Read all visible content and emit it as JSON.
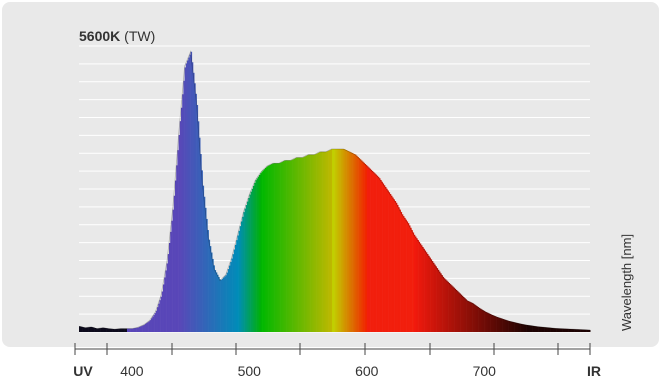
{
  "chart_data": {
    "type": "area",
    "title_bold": "5600K",
    "title_rest": " (TW)",
    "xlabel": "",
    "ylabel": "Wavelength [nm]",
    "x_ticks": [
      {
        "label": "UV",
        "bold": true
      },
      {
        "label": "400",
        "bold": false
      },
      {
        "label": "500",
        "bold": false
      },
      {
        "label": "600",
        "bold": false
      },
      {
        "label": "700",
        "bold": false
      },
      {
        "label": "IR",
        "bold": true
      }
    ],
    "x_tick_values": [
      400,
      500,
      600,
      700
    ],
    "xlim": [
      355,
      790
    ],
    "ylim": [
      0,
      1
    ],
    "grid": true,
    "legend": "none",
    "x": [
      355,
      360,
      365,
      370,
      375,
      380,
      385,
      390,
      395,
      400,
      405,
      410,
      415,
      420,
      425,
      430,
      435,
      440,
      445,
      450,
      455,
      460,
      465,
      470,
      475,
      480,
      485,
      490,
      495,
      500,
      505,
      510,
      515,
      520,
      525,
      530,
      535,
      540,
      545,
      550,
      555,
      560,
      565,
      570,
      575,
      580,
      585,
      590,
      595,
      600,
      605,
      610,
      615,
      620,
      625,
      630,
      635,
      640,
      645,
      650,
      655,
      660,
      665,
      670,
      675,
      680,
      685,
      690,
      695,
      700,
      705,
      710,
      715,
      720,
      725,
      730,
      735,
      740,
      745,
      750,
      755,
      760,
      765,
      770,
      775,
      780,
      785,
      790
    ],
    "y": [
      0.02,
      0.015,
      0.018,
      0.012,
      0.015,
      0.012,
      0.01,
      0.012,
      0.012,
      0.012,
      0.016,
      0.025,
      0.04,
      0.07,
      0.13,
      0.25,
      0.44,
      0.7,
      0.93,
      0.98,
      0.8,
      0.52,
      0.33,
      0.22,
      0.18,
      0.2,
      0.26,
      0.34,
      0.42,
      0.48,
      0.53,
      0.56,
      0.58,
      0.59,
      0.59,
      0.6,
      0.6,
      0.61,
      0.61,
      0.62,
      0.62,
      0.63,
      0.63,
      0.64,
      0.64,
      0.64,
      0.63,
      0.62,
      0.6,
      0.58,
      0.56,
      0.54,
      0.51,
      0.48,
      0.45,
      0.41,
      0.38,
      0.34,
      0.31,
      0.28,
      0.25,
      0.22,
      0.19,
      0.17,
      0.15,
      0.13,
      0.11,
      0.1,
      0.085,
      0.072,
      0.062,
      0.053,
      0.046,
      0.039,
      0.034,
      0.029,
      0.025,
      0.022,
      0.019,
      0.017,
      0.015,
      0.013,
      0.012,
      0.011,
      0.01,
      0.009,
      0.008,
      0.007
    ]
  }
}
